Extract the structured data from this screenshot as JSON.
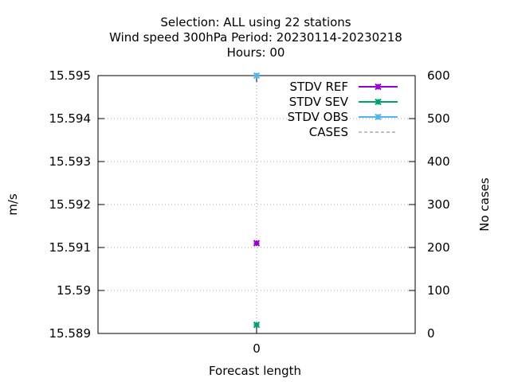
{
  "chart_data": {
    "type": "scatter",
    "title_lines": [
      "Selection: ALL using    22 stations",
      "Wind speed 300hPa   Period: 20230114-20230218",
      "Hours:  00"
    ],
    "xlabel": "Forecast length",
    "ylabel": "m/s",
    "y2label": "No cases",
    "x_ticks": [
      "0"
    ],
    "y_ticks": [
      "15.595",
      "15.594",
      "15.593",
      "15.592",
      "15.591",
      "15.59",
      "15.589"
    ],
    "y_tick_values": [
      15.595,
      15.594,
      15.593,
      15.592,
      15.591,
      15.59,
      15.589
    ],
    "y2_ticks": [
      "600",
      "500",
      "400",
      "300",
      "200",
      "100",
      "0"
    ],
    "y2_tick_values": [
      600,
      500,
      400,
      300,
      200,
      100,
      0
    ],
    "ylim": [
      15.589,
      15.595
    ],
    "y2lim": [
      0,
      600
    ],
    "xlim": [
      -0.5,
      0.5
    ],
    "grid": true,
    "legend_position": "top-right",
    "series": [
      {
        "name": "STDV REF",
        "color": "#9400d3",
        "axis": "y",
        "style": "linespoints",
        "x": [
          0
        ],
        "y": [
          15.5911
        ]
      },
      {
        "name": "STDV SEV",
        "color": "#009e73",
        "axis": "y",
        "style": "linespoints",
        "x": [
          0
        ],
        "y": [
          15.5892
        ]
      },
      {
        "name": "STDV OBS",
        "color": "#56b4e9",
        "axis": "y",
        "style": "linespoints",
        "x": [
          0
        ],
        "y": [
          15.595
        ]
      },
      {
        "name": "CASES",
        "color": "#808080",
        "axis": "y2",
        "style": "dashed",
        "x": [
          0
        ],
        "y": [
          20
        ]
      }
    ]
  }
}
